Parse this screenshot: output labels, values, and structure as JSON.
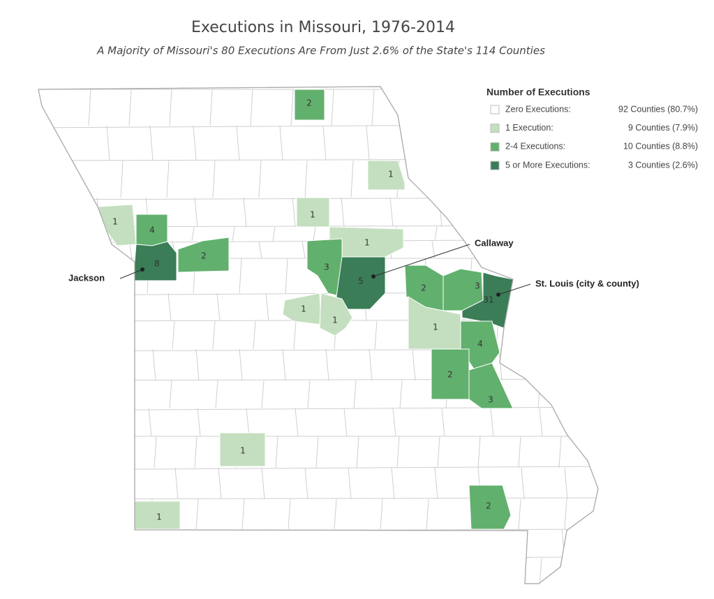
{
  "title": "Executions in Missouri, 1976-2014",
  "subtitle": "A Majority of Missouri's 80 Executions Are From Just 2.6% of the State's 114 Counties",
  "legend": {
    "title": "Number of Executions",
    "entries": [
      {
        "label": "Zero Executions:",
        "counties": "92 Counties (80.7%)",
        "color": "#ffffff"
      },
      {
        "label": "1 Execution:",
        "counties": "9 Counties  (7.9%)",
        "color": "#c4dfbf"
      },
      {
        "label": "2-4 Executions:",
        "counties": "10 Counties  (8.8%)",
        "color": "#62b06e"
      },
      {
        "label": "5 or More Executions:",
        "counties": "3 Counties  (2.6%)",
        "color": "#3a7d57"
      }
    ]
  },
  "counties": [
    {
      "value": 2,
      "color": "#62b06e"
    },
    {
      "value": 1,
      "color": "#c4dfbf"
    },
    {
      "value": 1,
      "color": "#c4dfbf"
    },
    {
      "value": 4,
      "color": "#62b06e"
    },
    {
      "value": 8,
      "color": "#3a7d57"
    },
    {
      "value": 2,
      "color": "#62b06e"
    },
    {
      "value": 1,
      "color": "#c4dfbf"
    },
    {
      "value": 1,
      "color": "#c4dfbf"
    },
    {
      "value": 3,
      "color": "#62b06e"
    },
    {
      "value": 5,
      "color": "#3a7d57"
    },
    {
      "value": 1,
      "color": "#c4dfbf"
    },
    {
      "value": 1,
      "color": "#c4dfbf"
    },
    {
      "value": 2,
      "color": "#62b06e"
    },
    {
      "value": 3,
      "color": "#62b06e"
    },
    {
      "value": 31,
      "color": "#3a7d57"
    },
    {
      "value": 1,
      "color": "#c4dfbf"
    },
    {
      "value": 4,
      "color": "#62b06e"
    },
    {
      "value": 2,
      "color": "#62b06e"
    },
    {
      "value": 3,
      "color": "#62b06e"
    },
    {
      "value": 1,
      "color": "#c4dfbf"
    },
    {
      "value": 2,
      "color": "#62b06e"
    },
    {
      "value": 1,
      "color": "#c4dfbf"
    }
  ],
  "annotations": [
    "Jackson",
    "Callaway",
    "St. Louis (city & county)"
  ]
}
